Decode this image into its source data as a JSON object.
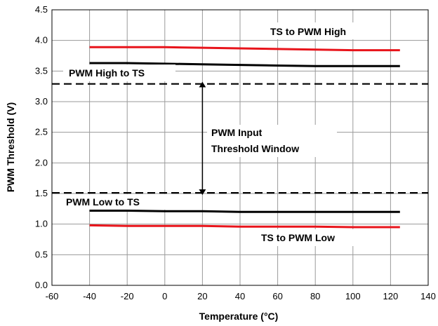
{
  "chart_data": {
    "type": "line",
    "title": "",
    "xlabel": "Temperature (°C)",
    "ylabel": "PWM Threshold (V)",
    "xlim": [
      -60,
      140
    ],
    "ylim": [
      0.0,
      4.5
    ],
    "x_ticks": [
      "-60",
      "-40",
      "-20",
      "0",
      "20",
      "40",
      "60",
      "80",
      "100",
      "120",
      "140"
    ],
    "y_ticks": [
      "0.0",
      "0.5",
      "1.0",
      "1.5",
      "2.0",
      "2.5",
      "3.0",
      "3.5",
      "4.0",
      "4.5"
    ],
    "grid": true,
    "legend": "none",
    "series": [
      {
        "name": "TS to PWM High",
        "color": "#e8141b",
        "style": "solid",
        "x": [
          -40,
          -20,
          0,
          20,
          40,
          60,
          80,
          100,
          125
        ],
        "y": [
          3.89,
          3.89,
          3.89,
          3.88,
          3.87,
          3.86,
          3.85,
          3.84,
          3.84
        ]
      },
      {
        "name": "PWM High to TS",
        "color": "#000000",
        "style": "solid",
        "x": [
          -40,
          -20,
          0,
          20,
          40,
          60,
          80,
          100,
          125
        ],
        "y": [
          3.63,
          3.63,
          3.62,
          3.61,
          3.6,
          3.59,
          3.58,
          3.58,
          3.58
        ]
      },
      {
        "name": "PWM Low  to TS",
        "color": "#000000",
        "style": "solid",
        "x": [
          -40,
          -20,
          0,
          20,
          40,
          60,
          80,
          100,
          125
        ],
        "y": [
          1.22,
          1.22,
          1.21,
          1.21,
          1.2,
          1.2,
          1.2,
          1.2,
          1.2
        ]
      },
      {
        "name": "TS to PWM Low",
        "color": "#e8141b",
        "style": "solid",
        "x": [
          -40,
          -20,
          0,
          20,
          40,
          60,
          80,
          100,
          125
        ],
        "y": [
          0.98,
          0.97,
          0.97,
          0.97,
          0.96,
          0.96,
          0.96,
          0.95,
          0.95
        ]
      }
    ],
    "reference_lines": [
      {
        "y": 3.29,
        "style": "dashed",
        "color": "#000000"
      },
      {
        "y": 1.51,
        "style": "dashed",
        "color": "#000000"
      }
    ],
    "arrow": {
      "x": 20,
      "y_from": 1.51,
      "y_to": 3.29
    },
    "annotations": {
      "ts_to_pwm_high": "TS to PWM High",
      "pwm_high_to_ts": "PWM High to TS",
      "window_line1": "PWM Input",
      "window_line2": "Threshold Window",
      "pwm_low_to_ts": "PWM Low  to TS",
      "ts_to_pwm_low": "TS to PWM Low"
    }
  }
}
